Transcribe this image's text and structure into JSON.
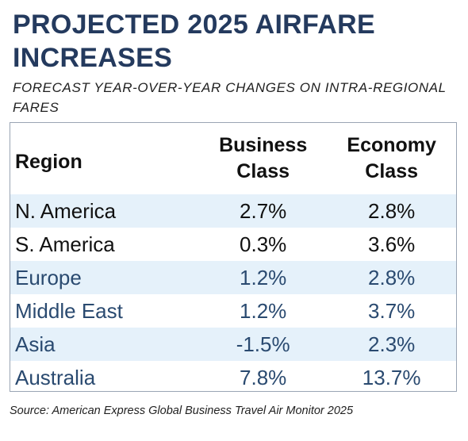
{
  "title": "PROJECTED 2025 AIRFARE INCREASES",
  "subtitle": "FORECAST YEAR-OVER-YEAR CHANGES ON INTRA-REGIONAL FARES",
  "source": "Source: American Express Global Business Travel Air Monitor 2025",
  "colors": {
    "title": "#243a5e",
    "band": "#e5f1fa",
    "accent_text": "#2a4a70",
    "border": "#9aa5b4"
  },
  "chart_data": {
    "type": "table",
    "title": "PROJECTED 2025 AIRFARE INCREASES",
    "subtitle": "FORECAST YEAR-OVER-YEAR CHANGES ON INTRA-REGIONAL FARES",
    "columns": [
      "Region",
      "Business Class",
      "Economy Class"
    ],
    "rows": [
      {
        "region": "N. America",
        "business": "2.7%",
        "economy": "2.8%",
        "band": true,
        "accent": false
      },
      {
        "region": "S. America",
        "business": "0.3%",
        "economy": "3.6%",
        "band": false,
        "accent": false
      },
      {
        "region": "Europe",
        "business": "1.2%",
        "economy": "2.8%",
        "band": true,
        "accent": true
      },
      {
        "region": "Middle East",
        "business": "1.2%",
        "economy": "3.7%",
        "band": false,
        "accent": true
      },
      {
        "region": "Asia",
        "business": "-1.5%",
        "economy": "2.3%",
        "band": true,
        "accent": true
      },
      {
        "region": "Australia",
        "business": "7.8%",
        "economy": "13.7%",
        "band": false,
        "accent": true
      }
    ],
    "categories": [
      "N. America",
      "S. America",
      "Europe",
      "Middle East",
      "Asia",
      "Australia"
    ],
    "series": [
      {
        "name": "Business Class",
        "values": [
          2.7,
          0.3,
          1.2,
          1.2,
          -1.5,
          7.8
        ]
      },
      {
        "name": "Economy Class",
        "values": [
          2.8,
          3.6,
          2.8,
          3.7,
          2.3,
          13.7
        ]
      }
    ]
  }
}
